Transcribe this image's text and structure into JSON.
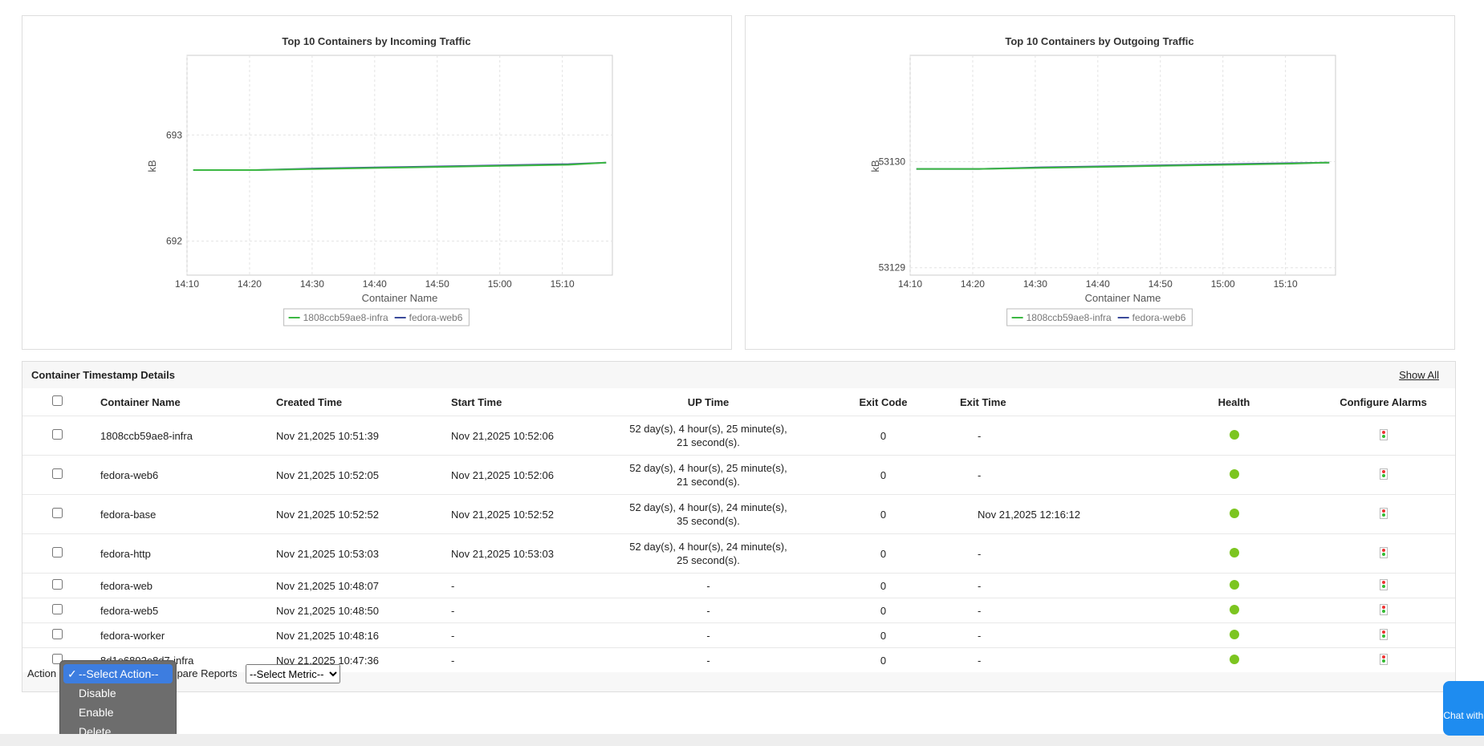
{
  "chart_data": [
    {
      "type": "line",
      "title": "Top 10 Containers by Incoming Traffic",
      "xlabel": "Container Name",
      "ylabel": "kB",
      "x": [
        "14:11",
        "14:16",
        "14:21",
        "14:31",
        "14:41",
        "14:51",
        "15:01",
        "15:11",
        "15:17"
      ],
      "xlim": [
        "14:10",
        "15:18"
      ],
      "xticks": [
        "14:10",
        "14:20",
        "14:30",
        "14:40",
        "14:50",
        "15:00",
        "15:10"
      ],
      "ylim": [
        691.68,
        693.75
      ],
      "yticks": [
        692,
        693
      ],
      "grid": true,
      "legend": "bottom",
      "series": [
        {
          "name": "1808ccb59ae8-infra",
          "color": "#3cb843",
          "values": [
            692.67,
            692.67,
            692.67,
            692.68,
            692.69,
            692.7,
            692.71,
            692.72,
            692.74
          ]
        },
        {
          "name": "fedora-web6",
          "color": "#3a4a9a",
          "values": [
            692.67,
            692.67,
            692.67,
            692.685,
            692.695,
            692.705,
            692.715,
            692.725,
            692.74
          ]
        }
      ]
    },
    {
      "type": "line",
      "title": "Top 10 Containers by Outgoing Traffic",
      "xlabel": "Container Name",
      "ylabel": "kB",
      "x": [
        "14:11",
        "14:16",
        "14:21",
        "14:31",
        "14:41",
        "14:51",
        "15:01",
        "15:11",
        "15:17"
      ],
      "xlim": [
        "14:10",
        "15:18"
      ],
      "xticks": [
        "14:10",
        "14:20",
        "14:30",
        "14:40",
        "14:50",
        "15:00",
        "15:10"
      ],
      "ylim": [
        53128.93,
        53131.0
      ],
      "yticks": [
        53129,
        53130
      ],
      "grid": true,
      "legend": "bottom",
      "series": [
        {
          "name": "1808ccb59ae8-infra",
          "color": "#3cb843",
          "values": [
            53129.93,
            53129.93,
            53129.93,
            53129.94,
            53129.95,
            53129.96,
            53129.97,
            53129.98,
            53129.99
          ]
        },
        {
          "name": "fedora-web6",
          "color": "#3a4a9a",
          "values": [
            53129.93,
            53129.93,
            53129.93,
            53129.945,
            53129.955,
            53129.965,
            53129.975,
            53129.985,
            53129.99
          ]
        }
      ]
    }
  ],
  "table": {
    "title": "Container Timestamp Details",
    "show_all": "Show All",
    "columns": [
      "Container Name",
      "Created Time",
      "Start Time",
      "UP Time",
      "Exit Code",
      "Exit Time",
      "Health",
      "Configure Alarms"
    ],
    "rows": [
      [
        "1808ccb59ae8-infra",
        "Nov 21,2025 10:51:39",
        "Nov 21,2025 10:52:06",
        "52 day(s), 4 hour(s), 25 minute(s), 21 second(s).",
        "0",
        "-"
      ],
      [
        "fedora-web6",
        "Nov 21,2025 10:52:05",
        "Nov 21,2025 10:52:06",
        "52 day(s), 4 hour(s), 25 minute(s), 21 second(s).",
        "0",
        "-"
      ],
      [
        "fedora-base",
        "Nov 21,2025 10:52:52",
        "Nov 21,2025 10:52:52",
        "52 day(s), 4 hour(s), 24 minute(s), 35 second(s).",
        "0",
        "Nov 21,2025 12:16:12"
      ],
      [
        "fedora-http",
        "Nov 21,2025 10:53:03",
        "Nov 21,2025 10:53:03",
        "52 day(s), 4 hour(s), 24 minute(s), 25 second(s).",
        "0",
        "-"
      ],
      [
        "fedora-web",
        "Nov 21,2025 10:48:07",
        "-",
        "-",
        "0",
        "-"
      ],
      [
        "fedora-web5",
        "Nov 21,2025 10:48:50",
        "-",
        "-",
        "0",
        "-"
      ],
      [
        "fedora-worker",
        "Nov 21,2025 10:48:16",
        "-",
        "-",
        "0",
        "-"
      ],
      [
        "8d1e6892e8d7-infra",
        "Nov 21,2025 10:47:36",
        "-",
        "-",
        "0",
        "-"
      ]
    ]
  },
  "footer": {
    "action_label": "Action",
    "action_options": [
      "--Select Action--",
      "Disable",
      "Enable",
      "Delete"
    ],
    "compare_label": "Compare Reports",
    "metric_select": "--Select Metric--"
  },
  "chat": "Chat with us!"
}
